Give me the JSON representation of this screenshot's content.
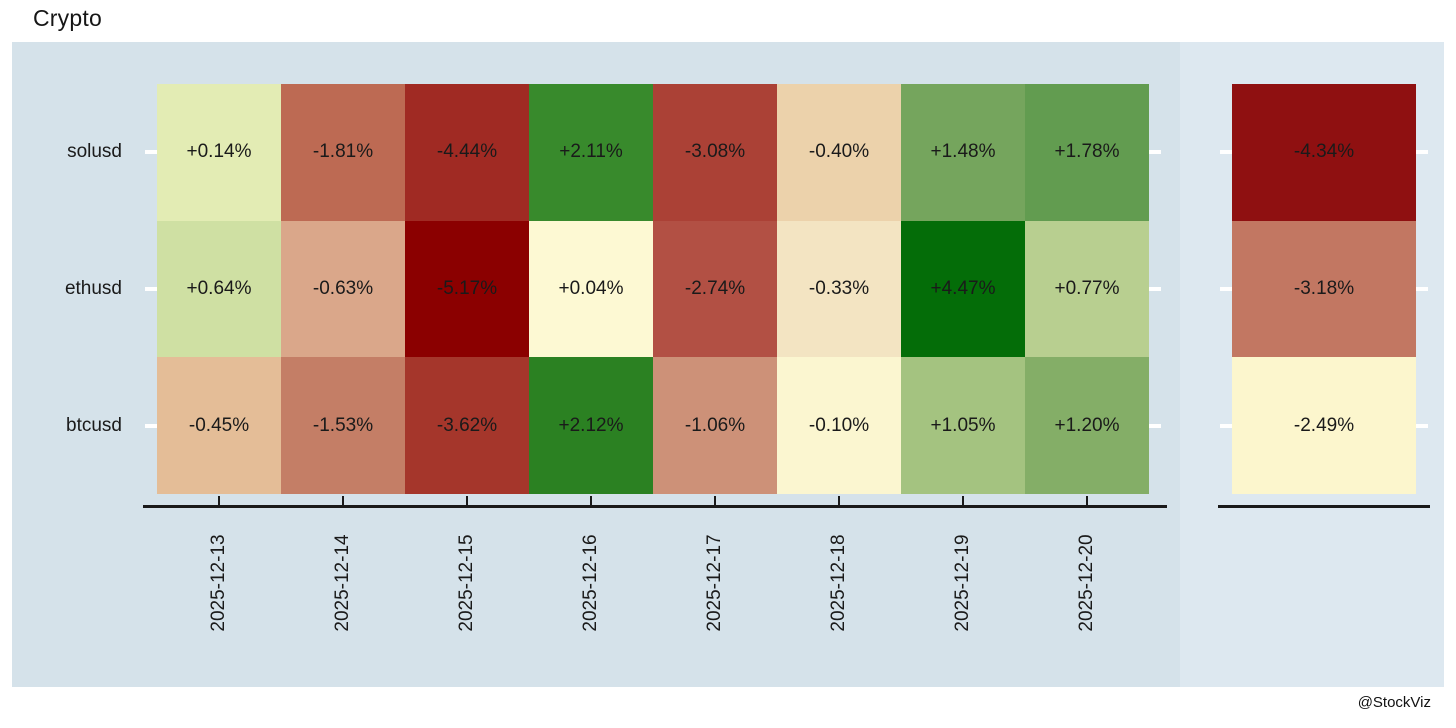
{
  "title": "Crypto",
  "watermark": "@StockViz",
  "colors": {
    "page_bg": "#ffffff",
    "panel_bg": "#d5e2ea",
    "right_panel_bg": "#dde8f0",
    "axis_line": "#1a1a1a",
    "tick_mark": "#ffffff",
    "text": "#1a1a1a"
  },
  "chart_data": {
    "type": "heatmap",
    "title": "Crypto",
    "value_format": "signed percent, 2 decimals",
    "legend": "none",
    "x_labels": [
      "2025-12-13",
      "2025-12-14",
      "2025-12-15",
      "2025-12-16",
      "2025-12-17",
      "2025-12-18",
      "2025-12-19",
      "2025-12-20"
    ],
    "y_labels": [
      "solusd",
      "ethusd",
      "btcusd"
    ],
    "series": [
      {
        "name": "solusd",
        "values": [
          0.14,
          -1.81,
          -4.44,
          2.11,
          -3.08,
          -0.4,
          1.48,
          1.78
        ],
        "labels": [
          "+0.14%",
          "-1.81%",
          "-4.44%",
          "+2.11%",
          "-3.08%",
          "-0.40%",
          "+1.48%",
          "+1.78%"
        ],
        "cell_colors": [
          "#e3ecb4",
          "#bd6a53",
          "#a02a23",
          "#388a2c",
          "#ab4136",
          "#ecd2ab",
          "#75a55d",
          "#629c50"
        ],
        "cumulative": {
          "value": -4.34,
          "label": "-4.34%",
          "color": "#8f1011"
        }
      },
      {
        "name": "ethusd",
        "values": [
          0.64,
          -0.63,
          -5.17,
          0.04,
          -2.74,
          -0.33,
          4.47,
          0.77
        ],
        "labels": [
          "+0.64%",
          "-0.63%",
          "-5.17%",
          "+0.04%",
          "-2.74%",
          "-0.33%",
          "+4.47%",
          "+0.77%"
        ],
        "cell_colors": [
          "#cfe0a3",
          "#daa78a",
          "#8b0000",
          "#fdf9d3",
          "#b25044",
          "#f3e4c2",
          "#046d08",
          "#b8cf90"
        ],
        "cumulative": {
          "value": -3.18,
          "label": "-3.18%",
          "color": "#c27762"
        }
      },
      {
        "name": "btcusd",
        "values": [
          -0.45,
          -1.53,
          -3.62,
          2.12,
          -1.06,
          -0.1,
          1.05,
          1.2
        ],
        "labels": [
          "-0.45%",
          "-1.53%",
          "-3.62%",
          "+2.12%",
          "-1.06%",
          "-0.10%",
          "+1.05%",
          "+1.20%"
        ],
        "cell_colors": [
          "#e4bd97",
          "#c47e66",
          "#a5362b",
          "#2b8122",
          "#cd9178",
          "#fbf6d0",
          "#a4c380",
          "#84ae67"
        ],
        "cumulative": {
          "value": -2.49,
          "label": "-2.49%",
          "color": "#fcf6cd"
        }
      }
    ]
  }
}
